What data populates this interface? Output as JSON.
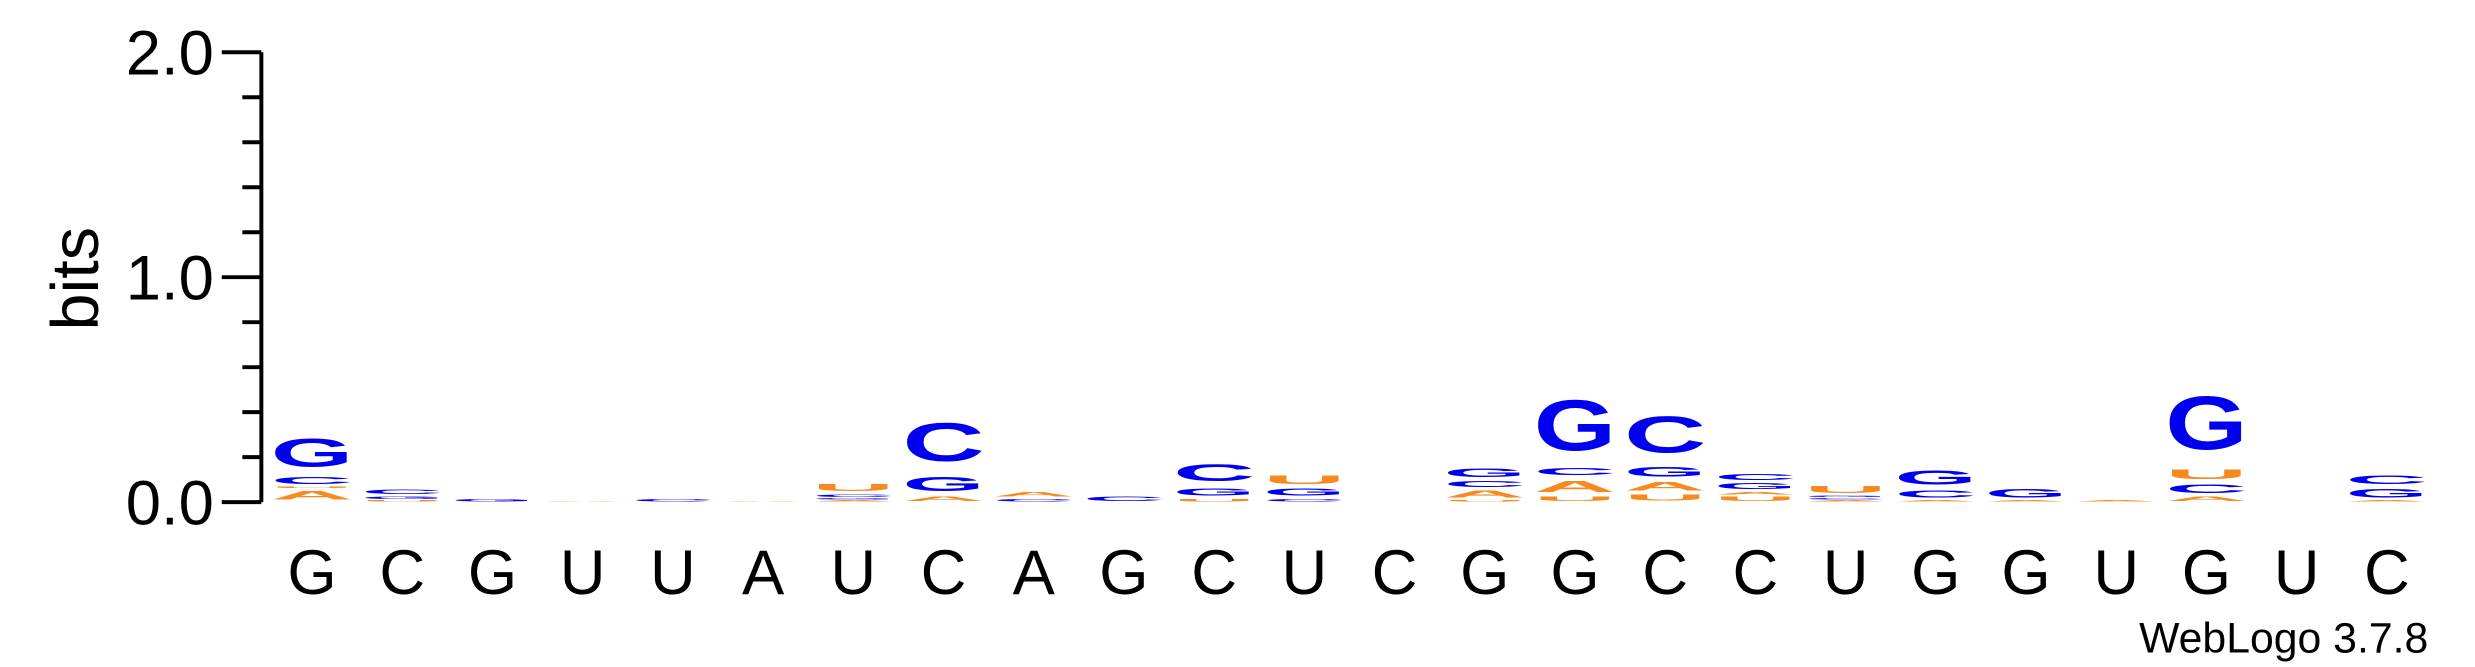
{
  "chart_data": {
    "type": "sequence-logo",
    "title": "",
    "ylabel": "bits",
    "xlabel": "",
    "ylim": [
      0,
      2.0
    ],
    "yticks": [
      "0.0",
      "1.0",
      "2.0"
    ],
    "credit": "WebLogo 3.7.8",
    "colors": {
      "G": "#0000ee",
      "C": "#0000ee",
      "A": "#f68a1e",
      "U": "#f68a1e"
    },
    "positions": [
      {
        "label": "G",
        "stack": [
          {
            "letter": "A",
            "height": 0.06
          },
          {
            "letter": "U",
            "height": 0.01
          },
          {
            "letter": "C",
            "height": 0.05
          },
          {
            "letter": "G",
            "height": 0.2
          }
        ]
      },
      {
        "label": "C",
        "stack": [
          {
            "letter": "U",
            "height": 0.01
          },
          {
            "letter": "G",
            "height": 0.02
          },
          {
            "letter": "C",
            "height": 0.03
          }
        ]
      },
      {
        "label": "G",
        "stack": [
          {
            "letter": "G",
            "height": 0.02
          }
        ]
      },
      {
        "label": "U",
        "stack": [
          {
            "letter": "A",
            "height": 0.005
          }
        ]
      },
      {
        "label": "U",
        "stack": [
          {
            "letter": "C",
            "height": 0.02
          }
        ]
      },
      {
        "label": "A",
        "stack": [
          {
            "letter": "A",
            "height": 0.005
          }
        ]
      },
      {
        "label": "U",
        "stack": [
          {
            "letter": "A",
            "height": 0.01
          },
          {
            "letter": "G",
            "height": 0.01
          },
          {
            "letter": "C",
            "height": 0.02
          },
          {
            "letter": "U",
            "height": 0.05
          }
        ]
      },
      {
        "label": "C",
        "stack": [
          {
            "letter": "A",
            "height": 0.03
          },
          {
            "letter": "G",
            "height": 0.1
          },
          {
            "letter": "C",
            "height": 0.27
          }
        ]
      },
      {
        "label": "A",
        "stack": [
          {
            "letter": "C",
            "height": 0.02
          },
          {
            "letter": "A",
            "height": 0.03
          }
        ]
      },
      {
        "label": "G",
        "stack": [
          {
            "letter": "C",
            "height": 0.03
          }
        ]
      },
      {
        "label": "C",
        "stack": [
          {
            "letter": "U",
            "height": 0.02
          },
          {
            "letter": "G",
            "height": 0.05
          },
          {
            "letter": "C",
            "height": 0.12
          }
        ]
      },
      {
        "label": "U",
        "stack": [
          {
            "letter": "C",
            "height": 0.02
          },
          {
            "letter": "G",
            "height": 0.05
          },
          {
            "letter": "U",
            "height": 0.06
          }
        ]
      },
      {
        "label": "C",
        "stack": []
      },
      {
        "label": "G",
        "stack": [
          {
            "letter": "U",
            "height": 0.01
          },
          {
            "letter": "A",
            "height": 0.05
          },
          {
            "letter": "C",
            "height": 0.04
          },
          {
            "letter": "G",
            "height": 0.06
          }
        ]
      },
      {
        "label": "G",
        "stack": [
          {
            "letter": "U",
            "height": 0.03
          },
          {
            "letter": "A",
            "height": 0.08
          },
          {
            "letter": "C",
            "height": 0.05
          },
          {
            "letter": "G",
            "height": 0.36
          }
        ]
      },
      {
        "label": "C",
        "stack": [
          {
            "letter": "U",
            "height": 0.04
          },
          {
            "letter": "A",
            "height": 0.06
          },
          {
            "letter": "G",
            "height": 0.07
          },
          {
            "letter": "C",
            "height": 0.26
          }
        ]
      },
      {
        "label": "C",
        "stack": [
          {
            "letter": "U",
            "height": 0.03
          },
          {
            "letter": "A",
            "height": 0.02
          },
          {
            "letter": "G",
            "height": 0.04
          },
          {
            "letter": "C",
            "height": 0.04
          }
        ]
      },
      {
        "label": "U",
        "stack": [
          {
            "letter": "A",
            "height": 0.01
          },
          {
            "letter": "C",
            "height": 0.01
          },
          {
            "letter": "G",
            "height": 0.01
          },
          {
            "letter": "U",
            "height": 0.05
          }
        ]
      },
      {
        "label": "G",
        "stack": [
          {
            "letter": "A",
            "height": 0.01
          },
          {
            "letter": "C",
            "height": 0.05
          },
          {
            "letter": "G",
            "height": 0.1
          }
        ]
      },
      {
        "label": "G",
        "stack": [
          {
            "letter": "A",
            "height": 0.01
          },
          {
            "letter": "G",
            "height": 0.06
          }
        ]
      },
      {
        "label": "U",
        "stack": [
          {
            "letter": "A",
            "height": 0.01
          }
        ]
      },
      {
        "label": "G",
        "stack": [
          {
            "letter": "A",
            "height": 0.03
          },
          {
            "letter": "C",
            "height": 0.06
          },
          {
            "letter": "U",
            "height": 0.07
          },
          {
            "letter": "G",
            "height": 0.38
          }
        ]
      },
      {
        "label": "U",
        "stack": []
      },
      {
        "label": "C",
        "stack": [
          {
            "letter": "A",
            "height": 0.01
          },
          {
            "letter": "G",
            "height": 0.06
          },
          {
            "letter": "C",
            "height": 0.06
          }
        ]
      }
    ]
  }
}
